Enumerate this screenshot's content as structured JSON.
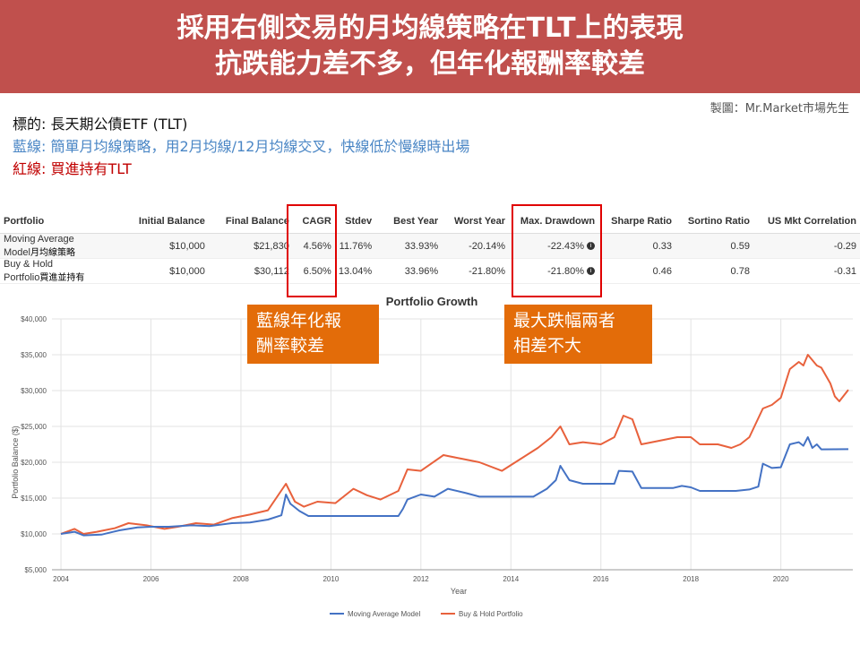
{
  "banner": {
    "line1": "採用右側交易的月均線策略在TLT上的表現",
    "line2": "抗跌能力差不多，但年化報酬率較差"
  },
  "credit": "製圖：Mr.Market市場先生",
  "info": {
    "line1": "標的: 長天期公債ETF (TLT)",
    "line2": "藍線: 簡單月均線策略，用2月均線/12月均線交叉，快線低於慢線時出場",
    "line3": "紅線: 買進持有TLT"
  },
  "table": {
    "headers": [
      "Portfolio",
      "Initial Balance",
      "Final Balance",
      "CAGR",
      "Stdev",
      "Best Year",
      "Worst Year",
      "Max. Drawdown",
      "Sharpe Ratio",
      "Sortino Ratio",
      "US Mkt Correlation"
    ],
    "rows": [
      {
        "name": "Moving Average Model",
        "zh": "月均線策略",
        "initial": "$10,000",
        "final": "$21,830",
        "cagr": "4.56%",
        "stdev": "11.76%",
        "best": "33.93%",
        "worst": "-20.14%",
        "mdd": "-22.43%",
        "sharpe": "0.33",
        "sortino": "0.59",
        "corr": "-0.29"
      },
      {
        "name": "Buy & Hold Portfolio",
        "zh": "買進並持有",
        "initial": "$10,000",
        "final": "$30,112",
        "cagr": "6.50%",
        "stdev": "13.04%",
        "best": "33.96%",
        "worst": "-21.80%",
        "mdd": "-21.80%",
        "sharpe": "0.46",
        "sortino": "0.78",
        "corr": "-0.31"
      }
    ],
    "info_icon": "info-circle-icon"
  },
  "callouts": {
    "left": [
      "藍線年化報",
      "酬率較差"
    ],
    "right": [
      "最大跌幅兩者",
      "相差不大"
    ]
  },
  "colors": {
    "banner": "#c0504d",
    "blue_series": "#4472c4",
    "red_series": "#e8613c",
    "highlight": "#e00000",
    "callout": "#e36c09"
  },
  "chart_data": {
    "type": "line",
    "title": "Portfolio Growth",
    "xlabel": "Year",
    "ylabel": "Portfolio Balance ($)",
    "xlim": [
      2003.8,
      2021.6
    ],
    "ylim": [
      5000,
      40000
    ],
    "x_ticks": [
      "2004",
      "2006",
      "2008",
      "2010",
      "2012",
      "2014",
      "2016",
      "2018",
      "2020"
    ],
    "y_ticks": [
      "$5,000",
      "$10,000",
      "$15,000",
      "$20,000",
      "$25,000",
      "$30,000",
      "$35,000",
      "$40,000"
    ],
    "grid": true,
    "legend": "bottom",
    "series": [
      {
        "name": "Moving Average Model",
        "points": [
          [
            2004.0,
            10000
          ],
          [
            2004.3,
            10300
          ],
          [
            2004.5,
            9800
          ],
          [
            2004.9,
            9900
          ],
          [
            2005.3,
            10500
          ],
          [
            2005.7,
            10900
          ],
          [
            2006.0,
            11000
          ],
          [
            2006.4,
            11000
          ],
          [
            2006.9,
            11200
          ],
          [
            2007.3,
            11100
          ],
          [
            2007.8,
            11500
          ],
          [
            2008.2,
            11600
          ],
          [
            2008.6,
            12000
          ],
          [
            2008.9,
            12600
          ],
          [
            2009.0,
            15500
          ],
          [
            2009.1,
            14200
          ],
          [
            2009.3,
            13200
          ],
          [
            2009.5,
            12500
          ],
          [
            2010.0,
            12500
          ],
          [
            2010.5,
            12500
          ],
          [
            2011.0,
            12500
          ],
          [
            2011.5,
            12500
          ],
          [
            2011.6,
            13500
          ],
          [
            2011.7,
            14800
          ],
          [
            2012.0,
            15500
          ],
          [
            2012.3,
            15200
          ],
          [
            2012.6,
            16300
          ],
          [
            2013.0,
            15700
          ],
          [
            2013.3,
            15200
          ],
          [
            2014.0,
            15200
          ],
          [
            2014.5,
            15200
          ],
          [
            2014.8,
            16300
          ],
          [
            2015.0,
            17500
          ],
          [
            2015.1,
            19500
          ],
          [
            2015.3,
            17500
          ],
          [
            2015.6,
            17000
          ],
          [
            2016.3,
            17000
          ],
          [
            2016.4,
            18800
          ],
          [
            2016.7,
            18700
          ],
          [
            2016.9,
            16400
          ],
          [
            2017.6,
            16400
          ],
          [
            2017.8,
            16700
          ],
          [
            2018.0,
            16500
          ],
          [
            2018.2,
            16000
          ],
          [
            2019.0,
            16000
          ],
          [
            2019.3,
            16200
          ],
          [
            2019.5,
            16600
          ],
          [
            2019.6,
            19800
          ],
          [
            2019.8,
            19200
          ],
          [
            2020.0,
            19300
          ],
          [
            2020.2,
            22500
          ],
          [
            2020.4,
            22800
          ],
          [
            2020.5,
            22300
          ],
          [
            2020.6,
            23500
          ],
          [
            2020.7,
            22000
          ],
          [
            2020.8,
            22500
          ],
          [
            2020.9,
            21800
          ],
          [
            2021.5,
            21830
          ]
        ]
      },
      {
        "name": "Buy & Hold Portfolio",
        "points": [
          [
            2004.0,
            10000
          ],
          [
            2004.3,
            10700
          ],
          [
            2004.5,
            10000
          ],
          [
            2004.8,
            10300
          ],
          [
            2005.2,
            10800
          ],
          [
            2005.5,
            11500
          ],
          [
            2005.9,
            11200
          ],
          [
            2006.3,
            10700
          ],
          [
            2006.6,
            11000
          ],
          [
            2007.0,
            11500
          ],
          [
            2007.4,
            11300
          ],
          [
            2007.8,
            12200
          ],
          [
            2008.2,
            12700
          ],
          [
            2008.6,
            13300
          ],
          [
            2009.0,
            17000
          ],
          [
            2009.2,
            14500
          ],
          [
            2009.4,
            13800
          ],
          [
            2009.7,
            14500
          ],
          [
            2010.1,
            14300
          ],
          [
            2010.5,
            16300
          ],
          [
            2010.8,
            15400
          ],
          [
            2011.1,
            14800
          ],
          [
            2011.5,
            16000
          ],
          [
            2011.7,
            19000
          ],
          [
            2012.0,
            18800
          ],
          [
            2012.5,
            21000
          ],
          [
            2012.9,
            20500
          ],
          [
            2013.3,
            20000
          ],
          [
            2013.8,
            18800
          ],
          [
            2014.1,
            20000
          ],
          [
            2014.6,
            22000
          ],
          [
            2014.9,
            23500
          ],
          [
            2015.1,
            25000
          ],
          [
            2015.3,
            22500
          ],
          [
            2015.6,
            22800
          ],
          [
            2016.0,
            22500
          ],
          [
            2016.3,
            23500
          ],
          [
            2016.5,
            26500
          ],
          [
            2016.7,
            26000
          ],
          [
            2016.9,
            22500
          ],
          [
            2017.3,
            23000
          ],
          [
            2017.7,
            23500
          ],
          [
            2018.0,
            23500
          ],
          [
            2018.2,
            22500
          ],
          [
            2018.6,
            22500
          ],
          [
            2018.9,
            22000
          ],
          [
            2019.1,
            22500
          ],
          [
            2019.3,
            23500
          ],
          [
            2019.6,
            27500
          ],
          [
            2019.8,
            28000
          ],
          [
            2020.0,
            29000
          ],
          [
            2020.2,
            33000
          ],
          [
            2020.4,
            34000
          ],
          [
            2020.5,
            33500
          ],
          [
            2020.6,
            35000
          ],
          [
            2020.8,
            33500
          ],
          [
            2020.9,
            33200
          ],
          [
            2021.1,
            31000
          ],
          [
            2021.2,
            29200
          ],
          [
            2021.3,
            28500
          ],
          [
            2021.5,
            30112
          ]
        ]
      }
    ]
  }
}
